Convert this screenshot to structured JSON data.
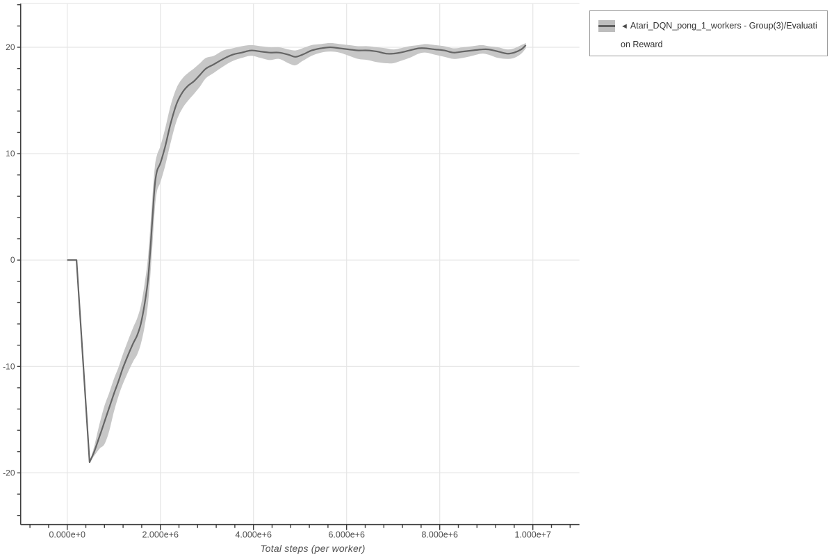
{
  "chart_data": {
    "type": "line",
    "title": "",
    "xlabel": "Total steps (per worker)",
    "ylabel": "",
    "xlim": [
      -1000000,
      11030000
    ],
    "ylim": [
      -24.9,
      24.1
    ],
    "grid": true,
    "legend_position": "top-right",
    "x_minor_dtick": 400000,
    "y_minor_dtick": 2,
    "x_major_ticks": [
      {
        "value": 0,
        "label": "0.000e+0"
      },
      {
        "value": 2000000,
        "label": "2.000e+6"
      },
      {
        "value": 4000000,
        "label": "4.000e+6"
      },
      {
        "value": 6000000,
        "label": "6.000e+6"
      },
      {
        "value": 8000000,
        "label": "8.000e+6"
      },
      {
        "value": 10000000,
        "label": "1.000e+7"
      }
    ],
    "y_major_ticks": [
      {
        "value": 20,
        "label": "20"
      },
      {
        "value": 10,
        "label": "10"
      },
      {
        "value": 0,
        "label": "0"
      },
      {
        "value": -10,
        "label": "-10"
      },
      {
        "value": -20,
        "label": "-20"
      }
    ],
    "series": [
      {
        "name": "Atari_DQN_pong_1_workers - Group(3)/Evaluation Reward",
        "x": [
          0,
          200000,
          480000,
          580000,
          700000,
          800000,
          900000,
          1000000,
          1100000,
          1200000,
          1320000,
          1420000,
          1500000,
          1580000,
          1660000,
          1740000,
          1820000,
          1880000,
          1930000,
          2000000,
          2100000,
          2220000,
          2350000,
          2480000,
          2600000,
          2720000,
          2850000,
          2980000,
          3150000,
          3350000,
          3550000,
          3750000,
          3950000,
          4150000,
          4350000,
          4550000,
          4750000,
          4900000,
          5050000,
          5250000,
          5450000,
          5650000,
          5850000,
          6050000,
          6250000,
          6450000,
          6650000,
          6850000,
          7000000,
          7150000,
          7350000,
          7550000,
          7700000,
          7900000,
          8100000,
          8300000,
          8500000,
          8700000,
          8900000,
          9050000,
          9250000,
          9450000,
          9600000,
          9750000,
          9850000
        ],
        "y": [
          0,
          0,
          -19,
          -18,
          -16.5,
          -15.2,
          -13.9,
          -12.6,
          -11.4,
          -10.1,
          -8.8,
          -7.8,
          -7.1,
          -6,
          -4.2,
          -1.6,
          3.2,
          7,
          8.4,
          9.1,
          10.6,
          12.8,
          14.7,
          15.8,
          16.4,
          16.8,
          17.4,
          18,
          18.4,
          18.9,
          19.3,
          19.5,
          19.7,
          19.6,
          19.5,
          19.5,
          19.3,
          19.1,
          19.3,
          19.7,
          19.9,
          20,
          19.9,
          19.8,
          19.7,
          19.7,
          19.6,
          19.4,
          19.4,
          19.5,
          19.7,
          19.9,
          19.9,
          19.8,
          19.7,
          19.5,
          19.6,
          19.7,
          19.8,
          19.8,
          19.6,
          19.4,
          19.5,
          19.8,
          20.2
        ],
        "band_low": [
          0,
          0,
          -19,
          -18.4,
          -17.7,
          -17.3,
          -16.1,
          -14.3,
          -12.8,
          -11.6,
          -10.4,
          -9.5,
          -8.9,
          -7.9,
          -6.3,
          -3.9,
          0.7,
          4.7,
          6.5,
          7.3,
          8.8,
          11,
          13.1,
          14.3,
          15,
          15.6,
          16.3,
          17.1,
          17.6,
          18.2,
          18.7,
          19,
          19.2,
          19,
          18.8,
          18.9,
          18.5,
          18.3,
          18.7,
          19.2,
          19.5,
          19.6,
          19.5,
          19.2,
          18.9,
          18.8,
          18.6,
          18.5,
          18.5,
          18.7,
          19,
          19.4,
          19.5,
          19.3,
          19.1,
          18.9,
          19,
          19.2,
          19.4,
          19.3,
          19,
          18.9,
          19,
          19.4,
          19.9
        ],
        "band_high": [
          0,
          0,
          -19,
          -17.5,
          -15.3,
          -13.7,
          -12.5,
          -11.2,
          -10.1,
          -8.8,
          -7.4,
          -6.3,
          -5.5,
          -4.3,
          -2.3,
          0.5,
          5.3,
          8.7,
          9.9,
          10.7,
          12.3,
          14.5,
          16.2,
          17.1,
          17.6,
          18,
          18.5,
          19,
          19.2,
          19.7,
          19.9,
          20.1,
          20.2,
          20.1,
          20,
          20,
          19.8,
          19.7,
          19.9,
          20.2,
          20.3,
          20.4,
          20.3,
          20.2,
          20.1,
          20.1,
          20,
          19.9,
          19.8,
          19.9,
          20.1,
          20.2,
          20.3,
          20.2,
          20.1,
          19.9,
          20,
          20.1,
          20.2,
          20.1,
          20,
          19.8,
          19.9,
          20.2,
          20.4
        ]
      }
    ]
  },
  "legend": {
    "items": [
      {
        "arrow": "◄",
        "label": "Atari_DQN_pong_1_workers - Group(3)/Evaluation Reward",
        "swatch": "band-line"
      }
    ]
  },
  "colors": {
    "line": "#656565",
    "band": "#c7c7c7",
    "grid": "#e5e5e5",
    "axis": "#3d3d3d",
    "tick_text": "#4d4d4d",
    "axis_title": "#4f4f4f",
    "legend_border": "#999999",
    "legend_text": "#333333",
    "legend_swatch_band": "#bdbdbd",
    "legend_swatch_line": "#5f5f5f",
    "background": "#ffffff"
  }
}
